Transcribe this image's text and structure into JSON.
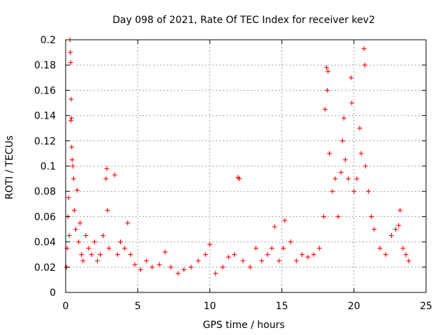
{
  "chart_data": {
    "type": "scatter",
    "title": "Day 098 of 2021, Rate Of TEC Index for receiver kev2",
    "xlabel": "GPS time / hours",
    "ylabel": "ROTI / TECUs",
    "xlim": [
      0,
      25
    ],
    "ylim": [
      0,
      0.2
    ],
    "x_ticks": [
      "0",
      "5",
      "10",
      "15",
      "20",
      "25"
    ],
    "y_ticks": [
      "0",
      "0.02",
      "0.04",
      "0.06",
      "0.08",
      "0.1",
      "0.12",
      "0.14",
      "0.16",
      "0.18",
      "0.2"
    ],
    "grid": true,
    "marker": "+",
    "color": "#ff0000",
    "series": [
      {
        "points": [
          [
            0.05,
            0.02
          ],
          [
            0.1,
            0.035
          ],
          [
            0.15,
            0.06
          ],
          [
            0.2,
            0.075
          ],
          [
            0.25,
            0.045
          ],
          [
            0.3,
            0.2
          ],
          [
            0.32,
            0.19
          ],
          [
            0.35,
            0.182
          ],
          [
            0.36,
            0.136
          ],
          [
            0.38,
            0.153
          ],
          [
            0.4,
            0.138
          ],
          [
            0.42,
            0.115
          ],
          [
            0.45,
            0.105
          ],
          [
            0.5,
            0.1
          ],
          [
            0.55,
            0.09
          ],
          [
            0.6,
            0.065
          ],
          [
            0.7,
            0.05
          ],
          [
            0.8,
            0.081
          ],
          [
            0.9,
            0.04
          ],
          [
            1.0,
            0.055
          ],
          [
            1.1,
            0.03
          ],
          [
            1.2,
            0.025
          ],
          [
            1.4,
            0.045
          ],
          [
            1.6,
            0.035
          ],
          [
            1.8,
            0.03
          ],
          [
            2.0,
            0.04
          ],
          [
            2.2,
            0.025
          ],
          [
            2.4,
            0.03
          ],
          [
            2.6,
            0.045
          ],
          [
            2.8,
            0.09
          ],
          [
            2.85,
            0.098
          ],
          [
            2.9,
            0.065
          ],
          [
            3.0,
            0.035
          ],
          [
            3.4,
            0.093
          ],
          [
            3.6,
            0.03
          ],
          [
            3.8,
            0.04
          ],
          [
            4.1,
            0.035
          ],
          [
            4.3,
            0.055
          ],
          [
            4.5,
            0.03
          ],
          [
            4.8,
            0.022
          ],
          [
            5.2,
            0.018
          ],
          [
            5.6,
            0.025
          ],
          [
            6.0,
            0.02
          ],
          [
            6.5,
            0.022
          ],
          [
            6.9,
            0.032
          ],
          [
            7.3,
            0.02
          ],
          [
            7.8,
            0.015
          ],
          [
            8.2,
            0.018
          ],
          [
            8.7,
            0.02
          ],
          [
            9.2,
            0.025
          ],
          [
            9.7,
            0.03
          ],
          [
            10.0,
            0.038
          ],
          [
            10.4,
            0.015
          ],
          [
            10.9,
            0.02
          ],
          [
            11.3,
            0.028
          ],
          [
            11.7,
            0.03
          ],
          [
            11.95,
            0.091
          ],
          [
            12.05,
            0.09
          ],
          [
            12.3,
            0.025
          ],
          [
            12.8,
            0.02
          ],
          [
            13.2,
            0.035
          ],
          [
            13.6,
            0.025
          ],
          [
            14.0,
            0.03
          ],
          [
            14.3,
            0.035
          ],
          [
            14.5,
            0.052
          ],
          [
            14.8,
            0.025
          ],
          [
            15.1,
            0.035
          ],
          [
            15.2,
            0.057
          ],
          [
            15.6,
            0.04
          ],
          [
            16.0,
            0.025
          ],
          [
            16.4,
            0.03
          ],
          [
            16.8,
            0.028
          ],
          [
            17.2,
            0.03
          ],
          [
            17.6,
            0.035
          ],
          [
            17.9,
            0.06
          ],
          [
            18.0,
            0.145
          ],
          [
            18.1,
            0.178
          ],
          [
            18.15,
            0.16
          ],
          [
            18.2,
            0.175
          ],
          [
            18.3,
            0.11
          ],
          [
            18.5,
            0.08
          ],
          [
            18.7,
            0.09
          ],
          [
            18.9,
            0.06
          ],
          [
            19.1,
            0.095
          ],
          [
            19.2,
            0.12
          ],
          [
            19.3,
            0.138
          ],
          [
            19.4,
            0.105
          ],
          [
            19.6,
            0.09
          ],
          [
            19.8,
            0.17
          ],
          [
            19.85,
            0.15
          ],
          [
            20.0,
            0.08
          ],
          [
            20.2,
            0.09
          ],
          [
            20.4,
            0.13
          ],
          [
            20.5,
            0.11
          ],
          [
            20.7,
            0.193
          ],
          [
            20.75,
            0.18
          ],
          [
            20.8,
            0.1
          ],
          [
            21.0,
            0.08
          ],
          [
            21.2,
            0.06
          ],
          [
            21.4,
            0.05
          ],
          [
            21.8,
            0.035
          ],
          [
            22.2,
            0.03
          ],
          [
            22.6,
            0.045
          ],
          [
            22.9,
            0.05
          ],
          [
            23.1,
            0.053
          ],
          [
            23.2,
            0.065
          ],
          [
            23.4,
            0.035
          ],
          [
            23.6,
            0.03
          ],
          [
            23.8,
            0.025
          ]
        ]
      }
    ]
  }
}
